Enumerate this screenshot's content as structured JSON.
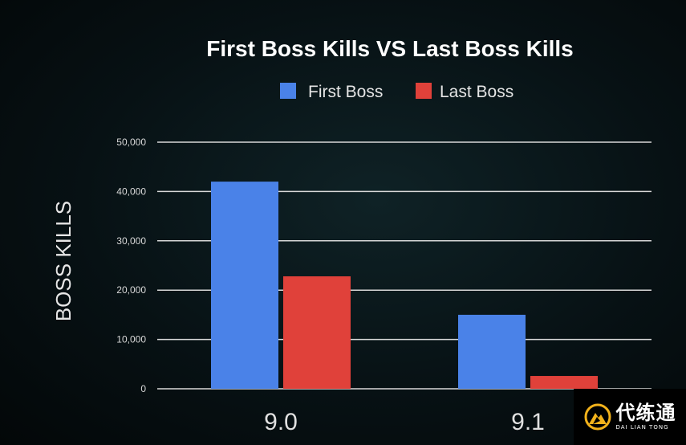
{
  "chart_data": {
    "type": "bar",
    "title": "First Boss Kills VS Last Boss Kills",
    "xlabel": "",
    "ylabel": "BOSS KILLS",
    "categories": [
      "9.0",
      "9.1"
    ],
    "series": [
      {
        "name": "First Boss",
        "values": [
          42000,
          15000
        ],
        "color": "#4a82e8"
      },
      {
        "name": "Last Boss",
        "values": [
          22800,
          2600
        ],
        "color": "#e0413a"
      }
    ],
    "ylim": [
      0,
      50000
    ],
    "yticks": [
      0,
      10000,
      20000,
      30000,
      40000,
      50000
    ],
    "ytick_labels": [
      "0",
      "10,000",
      "20,000",
      "30,000",
      "40,000",
      "50,000"
    ],
    "grid": true,
    "legend": "top-center"
  },
  "watermark": {
    "text_cn": "代练通",
    "text_en": "DAI LIAN TONG",
    "color": "#f2b21b"
  }
}
